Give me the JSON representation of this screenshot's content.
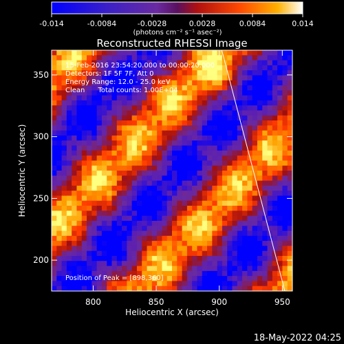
{
  "colorbar": {
    "ticks": [
      "-0.014",
      "-0.0084",
      "-0.0028",
      "0.0028",
      "0.0084",
      "0.014"
    ],
    "units": "(photons cm⁻² s⁻¹ asec⁻²)"
  },
  "title": "Reconstructed RHESSI Image",
  "annotations": {
    "line1": "15-Feb-2016 23:54:20.000 to 00:00:20.000",
    "line2": "Detectors: 1F 5F 7F, Att 0",
    "line3": "Energy Range: 12.0 - 25.0 keV",
    "line4": "Clean      Total counts: 1.00E+04",
    "peak": "Position of Peak = [898,360]"
  },
  "footer": "18-May-2022 04:25",
  "colors": {
    "colormap": [
      "#0000ff",
      "#5b1fb3",
      "#6a2aa0",
      "#a00f10",
      "#ff3a00",
      "#ffa000",
      "#ffff80"
    ],
    "limb_line": "#ffffff"
  },
  "chart_data": {
    "type": "heatmap",
    "title": "Reconstructed RHESSI Image",
    "xlabel": "Heliocentric X (arcsec)",
    "ylabel": "Heliocentric Y (arcsec)",
    "xlim": [
      767,
      958
    ],
    "ylim": [
      175,
      370
    ],
    "xticks": [
      800,
      850,
      900,
      950
    ],
    "yticks": [
      200,
      250,
      300,
      350
    ],
    "color_range": [
      -0.014,
      0.014
    ],
    "peak": [
      898,
      360
    ],
    "limb_line": [
      [
        902,
        370
      ],
      [
        952,
        175
      ]
    ]
  }
}
